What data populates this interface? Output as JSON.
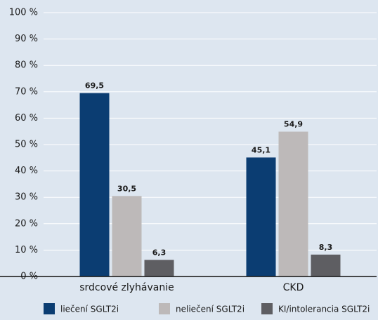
{
  "chart_data": {
    "type": "bar",
    "categories": [
      "srdcové zlyhávanie",
      "CKD"
    ],
    "series": [
      {
        "name": "liečení SGLT2i",
        "color": "#0b3d72",
        "values": [
          69.5,
          45.1
        ],
        "value_labels": [
          "69,5",
          "45,1"
        ]
      },
      {
        "name": "neliečení SGLT2i",
        "color": "#bdb9b9",
        "values": [
          30.5,
          54.9
        ],
        "value_labels": [
          "30,5",
          "54,9"
        ]
      },
      {
        "name": "KI/intolerancia SGLT2i",
        "color": "#5e5e62",
        "values": [
          6.3,
          8.3
        ],
        "value_labels": [
          "6,3",
          "8,3"
        ]
      }
    ],
    "ylim": [
      0,
      100
    ],
    "yticks": [
      {
        "value": 0,
        "label": "0 %"
      },
      {
        "value": 10,
        "label": "10 %"
      },
      {
        "value": 20,
        "label": "20 %"
      },
      {
        "value": 30,
        "label": "30 %"
      },
      {
        "value": 40,
        "label": "40 %"
      },
      {
        "value": 50,
        "label": "50 %"
      },
      {
        "value": 60,
        "label": "60 %"
      },
      {
        "value": 70,
        "label": "70 %"
      },
      {
        "value": 80,
        "label": "80 %"
      },
      {
        "value": 90,
        "label": "90 %"
      },
      {
        "value": 100,
        "label": "100 %"
      }
    ],
    "grid": true,
    "legend": "bottom"
  }
}
